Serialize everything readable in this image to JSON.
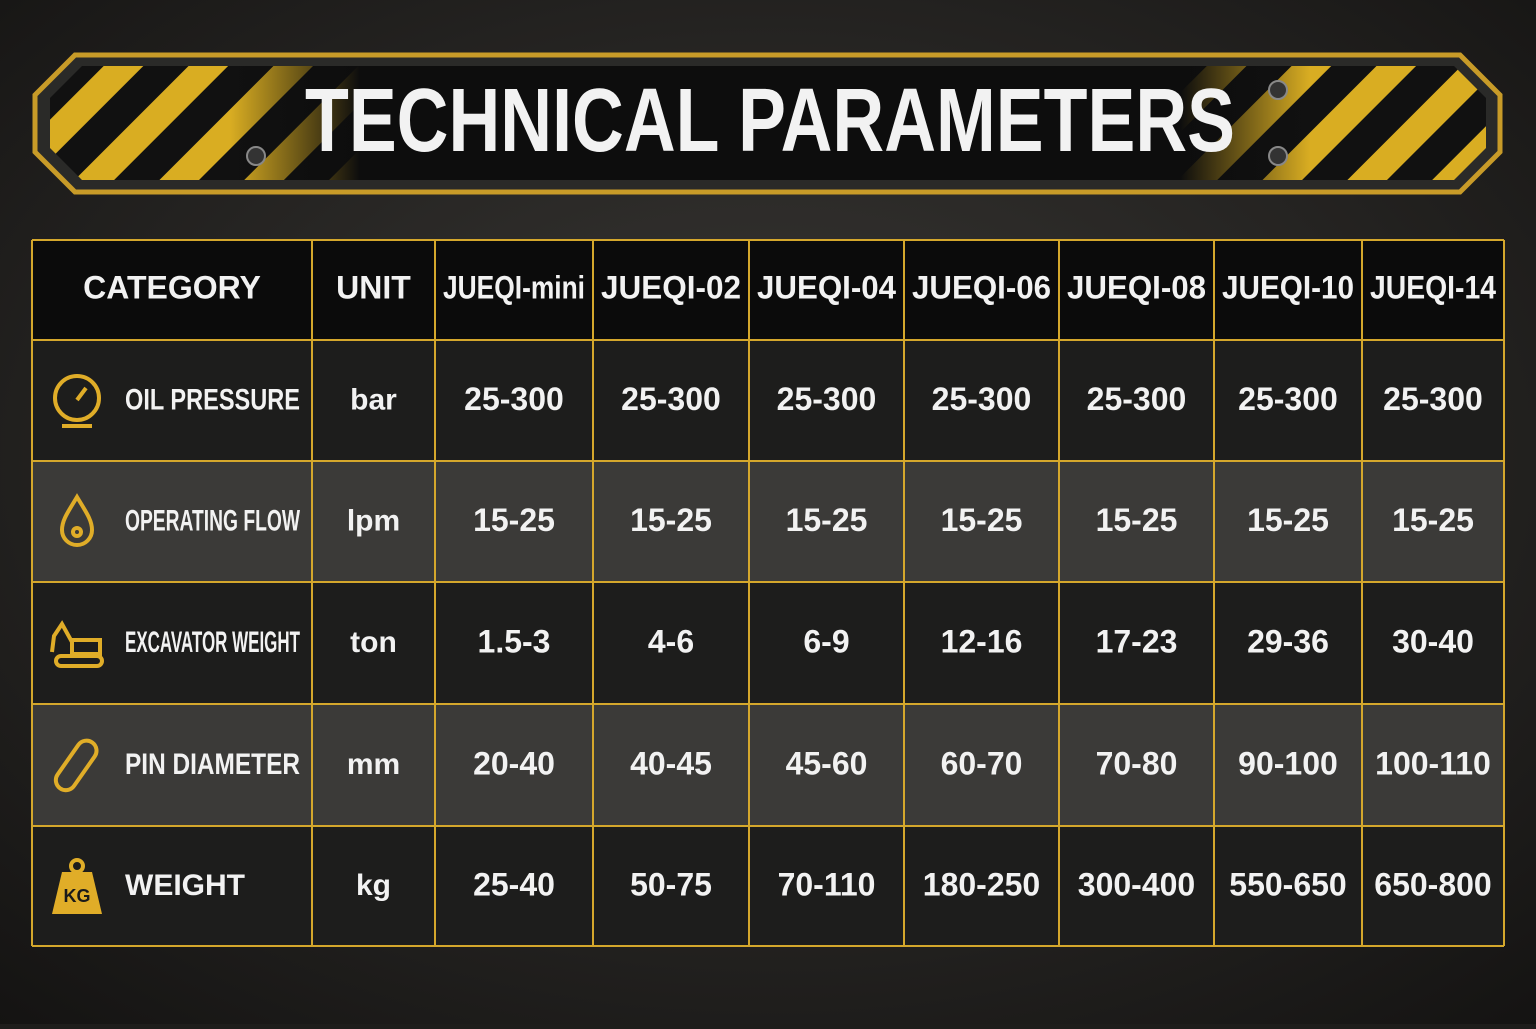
{
  "header": {
    "title": "TECHNICAL PARAMETERS"
  },
  "table": {
    "columns": [
      "CATEGORY",
      "UNIT",
      "JUEQI-mini",
      "JUEQI-02",
      "JUEQI-04",
      "JUEQI-06",
      "JUEQI-08",
      "JUEQI-10",
      "JUEQI-14"
    ],
    "rows": [
      {
        "category": "OIL PRESSURE",
        "unit": "bar",
        "values": [
          "25-300",
          "25-300",
          "25-300",
          "25-300",
          "25-300",
          "25-300",
          "25-300"
        ]
      },
      {
        "category": "OPERATING FLOW",
        "unit": "lpm",
        "values": [
          "15-25",
          "15-25",
          "15-25",
          "15-25",
          "15-25",
          "15-25",
          "15-25"
        ]
      },
      {
        "category": "EXCAVATOR WEIGHT",
        "unit": "ton",
        "values": [
          "1.5-3",
          "4-6",
          "6-9",
          "12-16",
          "17-23",
          "29-36",
          "30-40"
        ]
      },
      {
        "category": "PIN DIAMETER",
        "unit": "mm",
        "values": [
          "20-40",
          "40-45",
          "45-60",
          "60-70",
          "70-80",
          "90-100",
          "100-110"
        ]
      },
      {
        "category": "WEIGHT",
        "unit": "kg",
        "values": [
          "25-40",
          "50-75",
          "70-110",
          "180-250",
          "300-400",
          "550-650",
          "650-800"
        ],
        "icon_label": "KG"
      }
    ]
  }
}
